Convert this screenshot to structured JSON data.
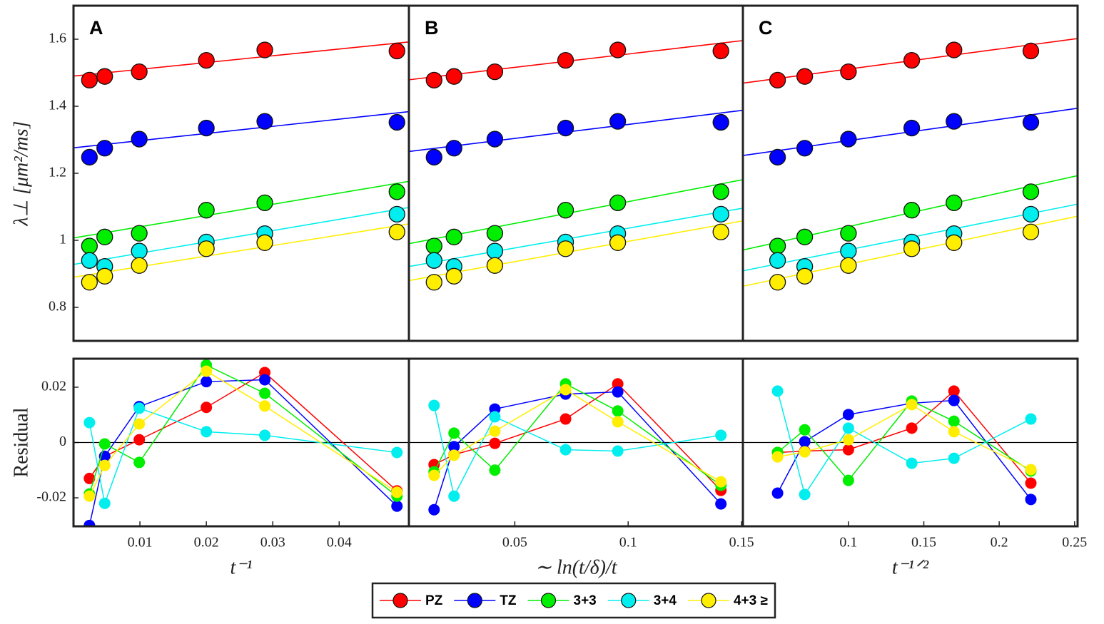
{
  "chart_data": [
    {
      "type": "scatter",
      "label": "A",
      "ylabel": "λ⊥ [μm²/ms]",
      "x": [
        0.0024,
        0.0047,
        0.0099,
        0.02,
        0.0288,
        0.0487
      ],
      "xlim": [
        0,
        0.0505
      ],
      "ylim": [
        0.7,
        1.7
      ],
      "yticks": [
        0.8,
        1,
        1.2,
        1.4,
        1.6
      ],
      "series": [
        {
          "name": "PZ",
          "color": "#ff0000",
          "values": [
            1.478,
            1.489,
            1.503,
            1.537,
            1.568,
            1.565
          ],
          "fit": [
            1.49,
            1.592
          ]
        },
        {
          "name": "TZ",
          "color": "#0000ff",
          "values": [
            1.248,
            1.275,
            1.302,
            1.335,
            1.355,
            1.352
          ],
          "fit": [
            1.276,
            1.384
          ]
        },
        {
          "name": "3+3",
          "color": "#00ee00",
          "values": [
            0.983,
            1.01,
            1.021,
            1.09,
            1.112,
            1.145
          ],
          "fit": [
            1.007,
            1.176
          ]
        },
        {
          "name": "3+4",
          "color": "#00eeee",
          "values": [
            0.94,
            0.922,
            0.968,
            0.995,
            1.02,
            1.078
          ],
          "fit": [
            0.928,
            1.098
          ]
        },
        {
          "name": "4+3 ≥",
          "color": "#ffee00",
          "values": [
            0.875,
            0.893,
            0.925,
            0.975,
            0.993,
            1.025
          ],
          "fit": [
            0.89,
            1.049
          ]
        }
      ]
    },
    {
      "type": "scatter",
      "label": "B",
      "x": [
        0.0144,
        0.0232,
        0.0412,
        0.0724,
        0.0954,
        0.1409
      ],
      "xlim": [
        0.0033,
        0.1506
      ],
      "ylim": [
        0.7,
        1.7
      ],
      "series": [
        {
          "name": "PZ",
          "color": "#ff0000",
          "values": [
            1.478,
            1.489,
            1.503,
            1.537,
            1.568,
            1.565
          ],
          "fit": [
            1.479,
            1.596
          ]
        },
        {
          "name": "TZ",
          "color": "#0000ff",
          "values": [
            1.248,
            1.275,
            1.302,
            1.335,
            1.355,
            1.352
          ],
          "fit": [
            1.265,
            1.388
          ]
        },
        {
          "name": "3+3",
          "color": "#00ee00",
          "values": [
            0.983,
            1.01,
            1.021,
            1.09,
            1.112,
            1.145
          ],
          "fit": [
            0.99,
            1.181
          ]
        },
        {
          "name": "3+4",
          "color": "#00eeee",
          "values": [
            0.94,
            0.922,
            0.968,
            0.995,
            1.02,
            1.078
          ],
          "fit": [
            0.922,
            1.096
          ]
        },
        {
          "name": "4+3 ≥",
          "color": "#ffee00",
          "values": [
            0.875,
            0.893,
            0.925,
            0.975,
            0.993,
            1.025
          ],
          "fit": [
            0.88,
            1.058
          ]
        }
      ]
    },
    {
      "type": "scatter",
      "label": "C",
      "x": [
        0.053,
        0.071,
        0.1,
        0.142,
        0.17,
        0.221
      ],
      "xlim": [
        0.03,
        0.252
      ],
      "ylim": [
        0.7,
        1.7
      ],
      "series": [
        {
          "name": "PZ",
          "color": "#ff0000",
          "values": [
            1.478,
            1.489,
            1.503,
            1.537,
            1.568,
            1.565
          ],
          "fit": [
            1.469,
            1.602
          ]
        },
        {
          "name": "TZ",
          "color": "#0000ff",
          "values": [
            1.248,
            1.275,
            1.302,
            1.335,
            1.355,
            1.352
          ],
          "fit": [
            1.253,
            1.394
          ]
        },
        {
          "name": "3+3",
          "color": "#00ee00",
          "values": [
            0.983,
            1.01,
            1.021,
            1.09,
            1.112,
            1.145
          ],
          "fit": [
            0.971,
            1.193
          ]
        },
        {
          "name": "3+4",
          "color": "#00eeee",
          "values": [
            0.94,
            0.922,
            0.968,
            0.995,
            1.02,
            1.078
          ],
          "fit": [
            0.909,
            1.108
          ]
        },
        {
          "name": "4+3 ≥",
          "color": "#ffee00",
          "values": [
            0.875,
            0.893,
            0.925,
            0.975,
            0.993,
            1.025
          ],
          "fit": [
            0.863,
            1.072
          ]
        }
      ]
    },
    {
      "type": "line",
      "ylabel": "Residual",
      "xlabel": "t⁻¹",
      "x": [
        0.0024,
        0.0047,
        0.0099,
        0.02,
        0.0288,
        0.0487
      ],
      "xlim": [
        0,
        0.0505
      ],
      "xticks": [
        0.01,
        0.02,
        0.03,
        0.04
      ],
      "ylim": [
        -0.0303,
        0.0303
      ],
      "yticks": [
        -0.02,
        0,
        0.02
      ],
      "series": [
        {
          "name": "PZ",
          "color": "#ff0000",
          "values": [
            -0.013,
            -0.005,
            0.001,
            0.0127,
            0.0253,
            -0.0175
          ]
        },
        {
          "name": "TZ",
          "color": "#0000ff",
          "values": [
            -0.03,
            -0.005,
            0.013,
            0.022,
            0.0227,
            -0.023
          ]
        },
        {
          "name": "3+3",
          "color": "#00ee00",
          "values": [
            -0.0186,
            -0.0005,
            -0.0072,
            0.028,
            0.0178,
            -0.0194
          ]
        },
        {
          "name": "3+4",
          "color": "#00eeee",
          "values": [
            0.0072,
            -0.022,
            0.0124,
            0.0039,
            0.0026,
            -0.0036
          ]
        },
        {
          "name": "4+3 ≥",
          "color": "#ffee00",
          "values": [
            -0.0194,
            -0.0083,
            0.0067,
            0.0258,
            0.0132,
            -0.018
          ]
        }
      ]
    },
    {
      "type": "line",
      "xlabel": "∼ ln(t/δ)/t",
      "x": [
        0.0144,
        0.0232,
        0.0412,
        0.0724,
        0.0954,
        0.1409
      ],
      "xlim": [
        0.0033,
        0.1506
      ],
      "xticks": [
        0.05,
        0.1,
        0.15
      ],
      "ylim": [
        -0.0303,
        0.0303
      ],
      "series": [
        {
          "name": "PZ",
          "color": "#ff0000",
          "values": [
            -0.008,
            -0.0044,
            -0.0003,
            0.0085,
            0.0212,
            -0.0173
          ]
        },
        {
          "name": "TZ",
          "color": "#0000ff",
          "values": [
            -0.0243,
            -0.0015,
            0.0121,
            0.0175,
            0.0183,
            -0.0222
          ]
        },
        {
          "name": "3+3",
          "color": "#00ee00",
          "values": [
            -0.0106,
            0.0034,
            -0.01,
            0.0212,
            0.0114,
            -0.0155
          ]
        },
        {
          "name": "3+4",
          "color": "#00eeee",
          "values": [
            0.0134,
            -0.0194,
            0.0093,
            -0.0026,
            -0.0031,
            0.0026
          ]
        },
        {
          "name": "4+3 ≥",
          "color": "#ffee00",
          "values": [
            -0.0119,
            -0.0046,
            0.0041,
            0.0191,
            0.0075,
            -0.0142
          ]
        }
      ]
    },
    {
      "type": "line",
      "xlabel": "t⁻¹ᐟ²",
      "x": [
        0.053,
        0.071,
        0.1,
        0.142,
        0.17,
        0.221
      ],
      "xlim": [
        0.03,
        0.252
      ],
      "xticks": [
        0.1,
        0.15,
        0.2,
        0.25
      ],
      "ylim": [
        -0.0303,
        0.0303
      ],
      "series": [
        {
          "name": "PZ",
          "color": "#ff0000",
          "values": [
            -0.0036,
            -0.0031,
            -0.0026,
            0.0052,
            0.0186,
            -0.0147
          ]
        },
        {
          "name": "TZ",
          "color": "#0000ff",
          "values": [
            -0.0183,
            0.0003,
            0.0101,
            0.0142,
            0.0152,
            -0.0206
          ]
        },
        {
          "name": "3+3",
          "color": "#00ee00",
          "values": [
            -0.0036,
            0.0046,
            -0.0137,
            0.015,
            0.0077,
            -0.0103
          ]
        },
        {
          "name": "3+4",
          "color": "#00eeee",
          "values": [
            0.0186,
            -0.0188,
            0.0052,
            -0.0075,
            -0.0057,
            0.0085
          ]
        },
        {
          "name": "4+3 ≥",
          "color": "#ffee00",
          "values": [
            -0.0052,
            -0.0034,
            0.001,
            0.0137,
            0.0039,
            -0.0098
          ]
        }
      ]
    }
  ]
}
